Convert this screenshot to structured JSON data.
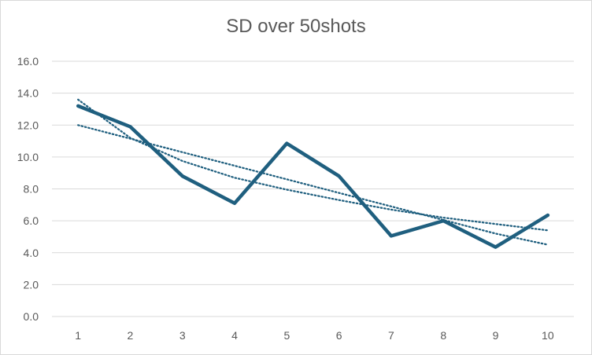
{
  "chart_data": {
    "type": "line",
    "title": "SD over 50shots",
    "xlabel": "",
    "ylabel": "",
    "x": [
      "1",
      "2",
      "3",
      "4",
      "5",
      "6",
      "7",
      "8",
      "9",
      "10"
    ],
    "series": [
      {
        "values": [
          13.2,
          11.9,
          8.8,
          7.1,
          10.85,
          8.8,
          5.05,
          6.0,
          4.35,
          6.35
        ],
        "color": "#1f5f7f",
        "style": "solid"
      }
    ],
    "trendlines": [
      {
        "type": "linear",
        "values": [
          12.0,
          11.15,
          10.3,
          9.45,
          8.6,
          7.75,
          6.9,
          6.05,
          5.2,
          4.5
        ],
        "color": "#1f5f7f",
        "style": "dotted"
      },
      {
        "type": "logarithmic",
        "values": [
          13.6,
          11.2,
          9.75,
          8.7,
          7.95,
          7.3,
          6.7,
          6.2,
          5.8,
          5.4
        ],
        "color": "#1f5f7f",
        "style": "dotted"
      }
    ],
    "ylim": [
      0,
      16
    ],
    "yticks": [
      "0.0",
      "2.0",
      "4.0",
      "6.0",
      "8.0",
      "10.0",
      "12.0",
      "14.0",
      "16.0"
    ],
    "grid": true,
    "legend": "none"
  }
}
